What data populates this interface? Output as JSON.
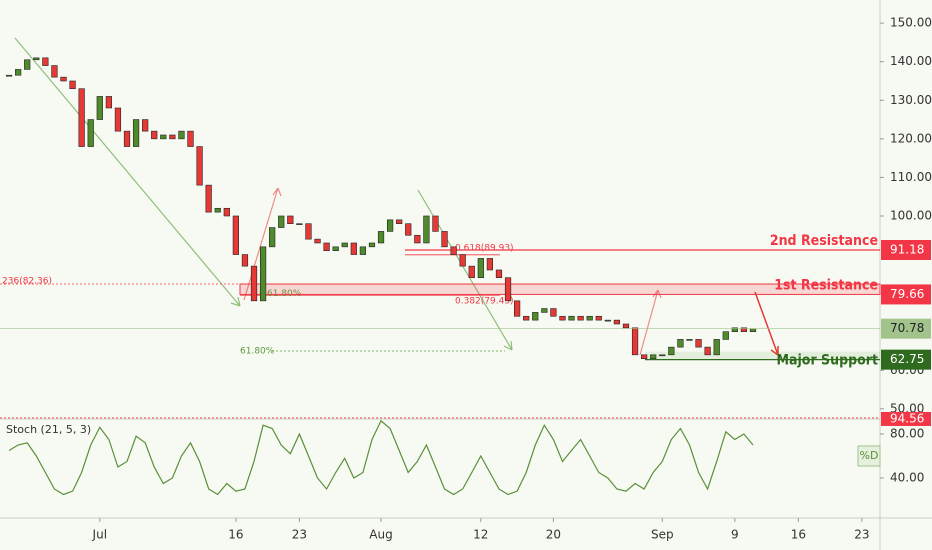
{
  "chart_data": {
    "type": "candlestick",
    "x": [
      "Jun 21",
      "Jun 22",
      "Jun 23",
      "Jun 24",
      "Jun 25",
      "Jun 26",
      "Jun 27",
      "Jun 28",
      "Jun 29",
      "Jun 30",
      "Jul 1",
      "Jul 2",
      "Jul 3",
      "Jul 4",
      "Jul 5",
      "Jul 6",
      "Jul 7",
      "Jul 8",
      "Jul 9",
      "Jul 10",
      "Jul 11",
      "Jul 12",
      "Jul 13",
      "Jul 14",
      "Jul 15",
      "Jul 16",
      "Jul 17",
      "Jul 18",
      "Jul 19",
      "Jul 20",
      "Jul 21",
      "Jul 22",
      "Jul 23",
      "Jul 24",
      "Jul 25",
      "Jul 26",
      "Jul 27",
      "Jul 28",
      "Jul 29",
      "Jul 30",
      "Jul 31",
      "Aug 1",
      "Aug 2",
      "Aug 3",
      "Aug 4",
      "Aug 5",
      "Aug 6",
      "Aug 7",
      "Aug 8",
      "Aug 9",
      "Aug 10",
      "Aug 11",
      "Aug 12",
      "Aug 13",
      "Aug 14",
      "Aug 15",
      "Aug 16",
      "Aug 17",
      "Aug 18",
      "Aug 19",
      "Aug 20",
      "Aug 21",
      "Aug 22",
      "Aug 23",
      "Aug 24",
      "Aug 25",
      "Aug 26",
      "Aug 27",
      "Aug 28",
      "Aug 29",
      "Aug 30",
      "Aug 31",
      "Sep 1",
      "Sep 2",
      "Sep 3",
      "Sep 4",
      "Sep 5",
      "Sep 6",
      "Sep 7",
      "Sep 8",
      "Sep 9",
      "Sep 10",
      "Sep 11"
    ],
    "values": [
      136.5,
      138,
      140.5,
      141,
      139,
      136,
      135,
      133,
      118,
      125,
      131,
      128,
      122,
      118,
      125,
      122,
      120,
      121,
      120,
      122,
      118,
      108,
      101,
      102,
      100,
      90,
      87,
      78,
      92,
      97,
      100,
      98,
      98,
      94,
      93,
      91,
      92,
      93,
      90,
      92,
      93,
      96,
      99,
      98,
      95,
      93,
      100,
      96,
      92,
      90,
      87,
      84,
      89,
      86,
      84,
      78,
      74,
      73,
      75,
      76,
      74,
      73,
      74,
      73,
      74,
      73,
      73,
      72,
      71,
      64,
      63,
      64,
      64,
      66,
      68,
      68,
      66,
      64,
      68,
      70,
      71,
      70,
      70.78
    ],
    "up_color": "#4f8a2b",
    "down_color": "#e53935",
    "last_color": "#a3c38c",
    "xlim": [
      "Jun 20",
      "Sep 25"
    ],
    "xticks": [
      {
        "value": "Jul 1",
        "label": "Jul"
      },
      {
        "value": "Jul 16",
        "label": "16"
      },
      {
        "value": "Jul 23",
        "label": "23"
      },
      {
        "value": "Aug 1",
        "label": "Aug"
      },
      {
        "value": "Aug 12",
        "label": "12"
      },
      {
        "value": "Aug 20",
        "label": "20"
      },
      {
        "value": "Sep 1",
        "label": "Sep"
      },
      {
        "value": "Sep 9",
        "label": "9"
      },
      {
        "value": "Sep 16",
        "label": "16"
      },
      {
        "value": "Sep 23",
        "label": "23"
      }
    ],
    "ylim": [
      48.4,
      156
    ],
    "yticks": [
      {
        "value": 50,
        "label": "50.00"
      },
      {
        "value": 60,
        "label": "60.00"
      },
      {
        "value": 100,
        "label": "100.00"
      },
      {
        "value": 110,
        "label": "110.00"
      },
      {
        "value": 120,
        "label": "120.00"
      },
      {
        "value": 130,
        "label": "130.00"
      },
      {
        "value": 140,
        "label": "140.00"
      },
      {
        "value": 150,
        "label": "150.00"
      }
    ],
    "levels": [
      {
        "text": "2nd Resistance",
        "value": 91.18,
        "color": "#f23645"
      },
      {
        "text": "1st Resistance",
        "value": 79.66,
        "color": "#f23645"
      },
      {
        "text": "Major Support",
        "value": 62.75,
        "color": "#2e6b1e"
      }
    ],
    "fibs": [
      {
        "label": "236(82.36)",
        "value": 82.36,
        "color": "#f23645"
      },
      {
        "label": "0.618(89.93)",
        "value": 89.93,
        "color": "#f23645"
      },
      {
        "label": "0.382(79.45)",
        "value": 79.45,
        "color": "#f23645"
      },
      {
        "label": "61.80%",
        "value": 81,
        "color": "#5a9a3a"
      },
      {
        "label": "61.80%",
        "value": 65,
        "color": "#5a9a3a"
      }
    ],
    "indicator": {
      "title": "Stoch (21, 5, 3)",
      "legend": "%D",
      "color": "#5a8f3a",
      "values": [
        65,
        70,
        72,
        60,
        45,
        30,
        25,
        28,
        45,
        70,
        86,
        75,
        50,
        55,
        78,
        72,
        50,
        35,
        40,
        60,
        72,
        55,
        30,
        25,
        35,
        28,
        30,
        55,
        88,
        85,
        70,
        62,
        80,
        60,
        40,
        30,
        45,
        58,
        40,
        45,
        75,
        92,
        85,
        65,
        45,
        55,
        70,
        50,
        30,
        25,
        30,
        45,
        60,
        45,
        30,
        25,
        28,
        45,
        70,
        88,
        75,
        55,
        65,
        75,
        60,
        45,
        40,
        30,
        28,
        35,
        30,
        45,
        55,
        75,
        85,
        70,
        45,
        30,
        55,
        82,
        75,
        80,
        70
      ],
      "ylim": [
        3.6,
        92.7
      ],
      "yticks": [
        {
          "value": 80,
          "label": "80.00"
        },
        {
          "value": 40,
          "label": "40.00"
        }
      ],
      "level": 94.56,
      "level_color": "#f23645"
    }
  }
}
